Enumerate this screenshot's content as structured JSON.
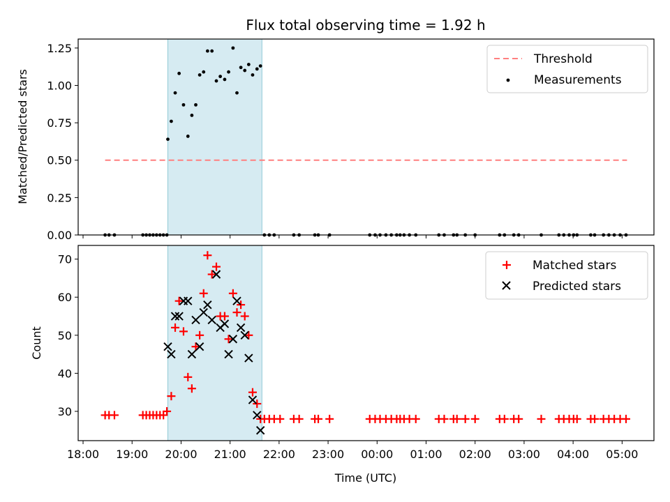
{
  "chart_data": {
    "title": "Flux total observing time = 1.92 h",
    "type": "scatter",
    "x_unit": "hours since 18:00 UTC",
    "xlabel": "Time (UTC)",
    "xlim": [
      -0.1,
      11.65
    ],
    "x_ticks": [
      0,
      1,
      2,
      3,
      4,
      5,
      6,
      7,
      8,
      9,
      10,
      11
    ],
    "x_tick_labels": [
      "18:00",
      "19:00",
      "20:00",
      "21:00",
      "22:00",
      "23:00",
      "00:00",
      "01:00",
      "02:00",
      "03:00",
      "04:00",
      "05:00"
    ],
    "shaded_span": {
      "start": 1.73,
      "end": 3.65
    },
    "top": {
      "ylabel": "Matched/Predicted stars",
      "ylim": [
        0,
        1.31
      ],
      "y_ticks": [
        0,
        0.25,
        0.5,
        0.75,
        1.0,
        1.25
      ],
      "y_tick_labels": [
        "0.00",
        "0.25",
        "0.50",
        "0.75",
        "1.00",
        "1.25"
      ],
      "threshold": {
        "label": "Threshold",
        "value": 0.5,
        "x_start": 0.45,
        "x_end": 11.1,
        "color": "#ff7f7f"
      },
      "measurements_label": "Measurements",
      "measurements": [
        [
          0.45,
          0
        ],
        [
          0.53,
          0
        ],
        [
          0.64,
          0
        ],
        [
          1.22,
          0
        ],
        [
          1.29,
          0
        ],
        [
          1.36,
          0
        ],
        [
          1.43,
          0
        ],
        [
          1.5,
          0
        ],
        [
          1.57,
          0
        ],
        [
          1.64,
          0
        ],
        [
          1.71,
          0
        ],
        [
          1.73,
          0.64
        ],
        [
          1.8,
          0.76
        ],
        [
          1.88,
          0.95
        ],
        [
          1.96,
          1.08
        ],
        [
          2.05,
          0.87
        ],
        [
          2.14,
          0.66
        ],
        [
          2.22,
          0.8
        ],
        [
          2.3,
          0.87
        ],
        [
          2.38,
          1.07
        ],
        [
          2.46,
          1.09
        ],
        [
          2.54,
          1.23
        ],
        [
          2.63,
          1.23
        ],
        [
          2.72,
          1.03
        ],
        [
          2.8,
          1.06
        ],
        [
          2.89,
          1.04
        ],
        [
          2.97,
          1.09
        ],
        [
          3.06,
          1.25
        ],
        [
          3.14,
          0.95
        ],
        [
          3.22,
          1.12
        ],
        [
          3.3,
          1.1
        ],
        [
          3.38,
          1.14
        ],
        [
          3.46,
          1.07
        ],
        [
          3.55,
          1.11
        ],
        [
          3.62,
          1.13
        ],
        [
          3.7,
          0
        ],
        [
          3.8,
          0
        ],
        [
          3.9,
          0
        ],
        [
          4.3,
          0
        ],
        [
          4.41,
          0
        ],
        [
          4.73,
          0
        ],
        [
          4.8,
          0
        ],
        [
          5.03,
          0
        ],
        [
          5.85,
          0
        ],
        [
          5.96,
          0
        ],
        [
          6.06,
          0
        ],
        [
          6.18,
          0
        ],
        [
          6.29,
          0
        ],
        [
          6.4,
          0
        ],
        [
          6.47,
          0
        ],
        [
          6.55,
          0
        ],
        [
          6.66,
          0
        ],
        [
          6.79,
          0
        ],
        [
          7.26,
          0
        ],
        [
          7.37,
          0
        ],
        [
          7.56,
          0
        ],
        [
          7.63,
          0
        ],
        [
          7.8,
          0
        ],
        [
          8.0,
          0
        ],
        [
          8.5,
          0
        ],
        [
          8.6,
          0
        ],
        [
          8.79,
          0
        ],
        [
          8.89,
          0
        ],
        [
          9.35,
          0
        ],
        [
          9.71,
          0
        ],
        [
          9.81,
          0
        ],
        [
          9.92,
          0
        ],
        [
          10.01,
          0
        ],
        [
          10.08,
          0
        ],
        [
          10.36,
          0
        ],
        [
          10.44,
          0
        ],
        [
          10.62,
          0
        ],
        [
          10.73,
          0
        ],
        [
          10.84,
          0
        ],
        [
          10.96,
          0
        ],
        [
          11.08,
          0
        ]
      ]
    },
    "bottom": {
      "ylabel": "Count",
      "ylim": [
        22.3,
        73.6
      ],
      "y_ticks": [
        30,
        40,
        50,
        60,
        70
      ],
      "y_tick_labels": [
        "30",
        "40",
        "50",
        "60",
        "70"
      ],
      "series": [
        {
          "name": "Matched stars",
          "marker": "plus",
          "color": "#ff0000",
          "points": [
            [
              0.45,
              29
            ],
            [
              0.53,
              29
            ],
            [
              0.64,
              29
            ],
            [
              1.22,
              29
            ],
            [
              1.29,
              29
            ],
            [
              1.36,
              29
            ],
            [
              1.43,
              29
            ],
            [
              1.5,
              29
            ],
            [
              1.57,
              29
            ],
            [
              1.64,
              29
            ],
            [
              1.71,
              30
            ],
            [
              1.8,
              34
            ],
            [
              1.88,
              52
            ],
            [
              1.96,
              59
            ],
            [
              2.05,
              51
            ],
            [
              2.14,
              39
            ],
            [
              2.22,
              36
            ],
            [
              2.3,
              47
            ],
            [
              2.38,
              50
            ],
            [
              2.46,
              61
            ],
            [
              2.54,
              71
            ],
            [
              2.63,
              66
            ],
            [
              2.72,
              68
            ],
            [
              2.8,
              55
            ],
            [
              2.89,
              55
            ],
            [
              2.97,
              49
            ],
            [
              3.06,
              61
            ],
            [
              3.14,
              56
            ],
            [
              3.22,
              58
            ],
            [
              3.3,
              55
            ],
            [
              3.38,
              50
            ],
            [
              3.46,
              35
            ],
            [
              3.55,
              32
            ],
            [
              3.62,
              28
            ],
            [
              3.7,
              28
            ],
            [
              3.8,
              28
            ],
            [
              3.9,
              28
            ],
            [
              4.02,
              28
            ],
            [
              4.3,
              28
            ],
            [
              4.41,
              28
            ],
            [
              4.73,
              28
            ],
            [
              4.8,
              28
            ],
            [
              5.03,
              28
            ],
            [
              5.85,
              28
            ],
            [
              5.96,
              28
            ],
            [
              6.06,
              28
            ],
            [
              6.18,
              28
            ],
            [
              6.29,
              28
            ],
            [
              6.4,
              28
            ],
            [
              6.47,
              28
            ],
            [
              6.55,
              28
            ],
            [
              6.66,
              28
            ],
            [
              6.79,
              28
            ],
            [
              7.26,
              28
            ],
            [
              7.37,
              28
            ],
            [
              7.56,
              28
            ],
            [
              7.63,
              28
            ],
            [
              7.8,
              28
            ],
            [
              8.0,
              28
            ],
            [
              8.5,
              28
            ],
            [
              8.6,
              28
            ],
            [
              8.79,
              28
            ],
            [
              8.89,
              28
            ],
            [
              9.35,
              28
            ],
            [
              9.71,
              28
            ],
            [
              9.81,
              28
            ],
            [
              9.92,
              28
            ],
            [
              10.01,
              28
            ],
            [
              10.08,
              28
            ],
            [
              10.36,
              28
            ],
            [
              10.44,
              28
            ],
            [
              10.62,
              28
            ],
            [
              10.73,
              28
            ],
            [
              10.84,
              28
            ],
            [
              10.96,
              28
            ],
            [
              11.08,
              28
            ]
          ]
        },
        {
          "name": "Predicted stars",
          "marker": "x",
          "color": "#000000",
          "points": [
            [
              1.73,
              47
            ],
            [
              1.8,
              45
            ],
            [
              1.88,
              55
            ],
            [
              1.96,
              55
            ],
            [
              2.05,
              59
            ],
            [
              2.14,
              59
            ],
            [
              2.22,
              45
            ],
            [
              2.3,
              54
            ],
            [
              2.38,
              47
            ],
            [
              2.46,
              56
            ],
            [
              2.54,
              58
            ],
            [
              2.63,
              54
            ],
            [
              2.72,
              66
            ],
            [
              2.8,
              52
            ],
            [
              2.89,
              53
            ],
            [
              2.97,
              45
            ],
            [
              3.06,
              49
            ],
            [
              3.14,
              59
            ],
            [
              3.22,
              52
            ],
            [
              3.3,
              50
            ],
            [
              3.38,
              44
            ],
            [
              3.46,
              33
            ],
            [
              3.55,
              29
            ],
            [
              3.62,
              25
            ]
          ]
        }
      ]
    }
  }
}
